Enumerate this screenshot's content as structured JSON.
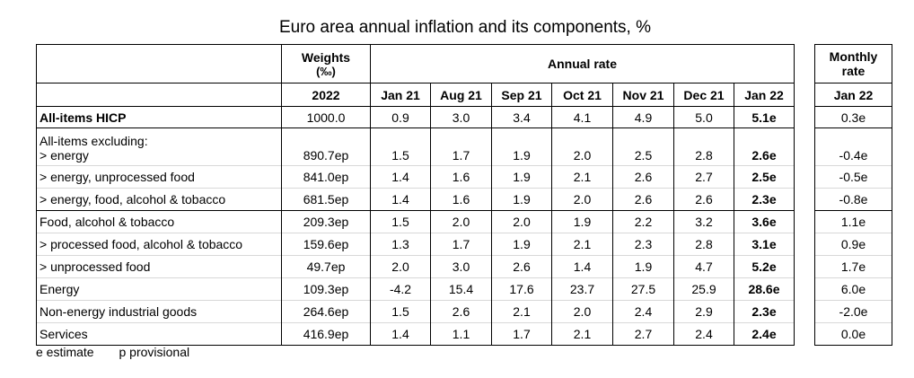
{
  "title": "Euro area annual inflation and its components, %",
  "headers": {
    "weights": "Weights",
    "weights_unit": "(‰)",
    "weights_year": "2022",
    "annual_rate": "Annual rate",
    "monthly_rate_line1": "Monthly",
    "monthly_rate_line2": "rate",
    "monthly_month": "Jan 22"
  },
  "months": [
    "Jan 21",
    "Aug 21",
    "Sep 21",
    "Oct 21",
    "Nov 21",
    "Dec 21",
    "Jan 22"
  ],
  "rows": {
    "all_items": {
      "label": "All-items HICP",
      "weight": "1000.0",
      "values": [
        "0.9",
        "3.0",
        "3.4",
        "4.1",
        "4.9",
        "5.0",
        "5.1e"
      ],
      "monthly": "0.3e"
    },
    "excluding_header": "All-items excluding:",
    "energy_ex": {
      "label": "> energy",
      "weight": "890.7ep",
      "values": [
        "1.5",
        "1.7",
        "1.9",
        "2.0",
        "2.5",
        "2.8",
        "2.6e"
      ],
      "monthly": "-0.4e"
    },
    "energy_unproc_ex": {
      "label": "> energy, unprocessed food",
      "weight": "841.0ep",
      "values": [
        "1.4",
        "1.6",
        "1.9",
        "2.1",
        "2.6",
        "2.7",
        "2.5e"
      ],
      "monthly": "-0.5e"
    },
    "energy_food_ex": {
      "label": "> energy, food, alcohol & tobacco",
      "weight": "681.5ep",
      "values": [
        "1.4",
        "1.6",
        "1.9",
        "2.0",
        "2.6",
        "2.6",
        "2.3e"
      ],
      "monthly": "-0.8e"
    },
    "food": {
      "label": "Food, alcohol & tobacco",
      "weight": "209.3ep",
      "values": [
        "1.5",
        "2.0",
        "2.0",
        "1.9",
        "2.2",
        "3.2",
        "3.6e"
      ],
      "monthly": "1.1e"
    },
    "processed_food": {
      "label": "> processed food, alcohol & tobacco",
      "weight": "159.6ep",
      "values": [
        "1.3",
        "1.7",
        "1.9",
        "2.1",
        "2.3",
        "2.8",
        "3.1e"
      ],
      "monthly": "0.9e"
    },
    "unprocessed_food": {
      "label": "> unprocessed food",
      "weight": "49.7ep",
      "values": [
        "2.0",
        "3.0",
        "2.6",
        "1.4",
        "1.9",
        "4.7",
        "5.2e"
      ],
      "monthly": "1.7e"
    },
    "energy": {
      "label": "Energy",
      "weight": "109.3ep",
      "values": [
        "-4.2",
        "15.4",
        "17.6",
        "23.7",
        "27.5",
        "25.9",
        "28.6e"
      ],
      "monthly": "6.0e"
    },
    "non_energy_goods": {
      "label": "Non-energy industrial goods",
      "weight": "264.6ep",
      "values": [
        "1.5",
        "2.6",
        "2.1",
        "2.0",
        "2.4",
        "2.9",
        "2.3e"
      ],
      "monthly": "-2.0e"
    },
    "services": {
      "label": "Services",
      "weight": "416.9ep",
      "values": [
        "1.4",
        "1.1",
        "1.7",
        "2.1",
        "2.7",
        "2.4",
        "2.4e"
      ],
      "monthly": "0.0e"
    }
  },
  "footnote": {
    "e": "e estimate",
    "p": "p provisional"
  }
}
